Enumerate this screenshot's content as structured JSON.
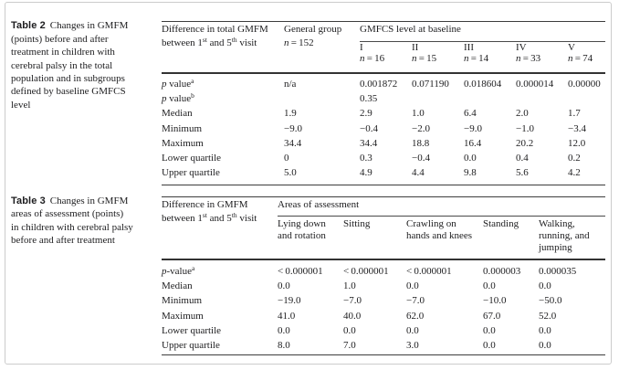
{
  "page": {
    "background": "#ffffff",
    "card_border": "#cccccc",
    "text_color": "#1d1d1f",
    "rule_color": "#3d3d3d"
  },
  "table2": {
    "caption_lines": [
      [
        {
          "t": "b",
          "x": "Table 2"
        },
        "Changes in GMFM"
      ],
      [
        "(points) before and after"
      ],
      [
        "treatment in children with"
      ],
      [
        "cerebral palsy in the total"
      ],
      [
        "population and in subgroups"
      ],
      [
        "defined by baseline GMFCS"
      ],
      [
        "level"
      ]
    ],
    "header": {
      "col1_lines": [
        [
          "Difference in total GMFM"
        ],
        [
          "between 1",
          {
            "t": "sup",
            "x": "st"
          },
          " and 5",
          {
            "t": "sup",
            "x": "th"
          },
          " visit"
        ]
      ],
      "col2_lines": [
        [
          "General group"
        ],
        [
          {
            "t": "i",
            "x": "n"
          },
          " = 152"
        ]
      ],
      "span_lines": [
        [
          "GMFCS level at baseline"
        ]
      ],
      "groups": [
        [
          [
            "I"
          ],
          [
            {
              "t": "i",
              "x": "n"
            },
            " = 16"
          ]
        ],
        [
          [
            "II"
          ],
          [
            {
              "t": "i",
              "x": "n"
            },
            " = 15"
          ]
        ],
        [
          [
            "III"
          ],
          [
            {
              "t": "i",
              "x": "n"
            },
            " = 14"
          ]
        ],
        [
          [
            "IV"
          ],
          [
            {
              "t": "i",
              "x": "n"
            },
            " = 33"
          ]
        ],
        [
          [
            "V"
          ],
          [
            {
              "t": "i",
              "x": "n"
            },
            " = 74"
          ]
        ]
      ]
    },
    "rows": [
      {
        "label": [
          {
            "t": "i",
            "x": "p"
          },
          " value",
          {
            "t": "sup",
            "x": "a"
          }
        ],
        "values": [
          "n/a",
          "0.001872",
          "0.071190",
          "0.018604",
          "0.000014",
          "0.00000"
        ]
      },
      {
        "label": [
          {
            "t": "i",
            "x": "p"
          },
          " value",
          {
            "t": "sup",
            "x": "b"
          }
        ],
        "values": [
          "",
          "0.35",
          "",
          "",
          "",
          ""
        ]
      },
      {
        "label": [
          "Median"
        ],
        "values": [
          "1.9",
          "2.9",
          "1.0",
          "6.4",
          "2.0",
          "1.7"
        ]
      },
      {
        "label": [
          "Minimum"
        ],
        "values": [
          "−9.0",
          "−0.4",
          "−2.0",
          "−9.0",
          "−1.0",
          "−3.4"
        ]
      },
      {
        "label": [
          "Maximum"
        ],
        "values": [
          "34.4",
          "34.4",
          "18.8",
          "16.4",
          "20.2",
          "12.0"
        ]
      },
      {
        "label": [
          "Lower quartile"
        ],
        "values": [
          "0",
          "0.3",
          "−0.4",
          "0.0",
          "0.4",
          "0.2"
        ]
      },
      {
        "label": [
          "Upper quartile"
        ],
        "values": [
          "5.0",
          "4.9",
          "4.4",
          "9.8",
          "5.6",
          "4.2"
        ]
      }
    ]
  },
  "table3": {
    "caption_lines": [
      [
        {
          "t": "b",
          "x": "Table 3"
        },
        "Changes in GMFM"
      ],
      [
        "areas of assessment (points)"
      ],
      [
        "in children with cerebral palsy"
      ],
      [
        "before and after treatment"
      ]
    ],
    "header": {
      "col1_lines": [
        [
          "Difference in GMFM"
        ],
        [
          "between 1",
          {
            "t": "sup",
            "x": "st"
          },
          " and 5",
          {
            "t": "sup",
            "x": "th"
          },
          " visit"
        ]
      ],
      "span_lines": [
        [
          "Areas of assessment"
        ]
      ],
      "groups": [
        [
          [
            "Lying down"
          ],
          [
            "and rotation"
          ]
        ],
        [
          [
            "Sitting"
          ]
        ],
        [
          [
            "Crawling on"
          ],
          [
            "hands and knees"
          ]
        ],
        [
          [
            "Standing"
          ]
        ],
        [
          [
            "Walking,"
          ],
          [
            "running, and"
          ],
          [
            "jumping"
          ]
        ]
      ]
    },
    "rows": [
      {
        "label": [
          {
            "t": "i",
            "x": "p"
          },
          "-value",
          {
            "t": "sup",
            "x": "a"
          }
        ],
        "values": [
          "< 0.000001",
          "< 0.000001",
          "< 0.000001",
          "0.000003",
          "0.000035"
        ]
      },
      {
        "label": [
          "Median"
        ],
        "values": [
          "0.0",
          "1.0",
          "0.0",
          "0.0",
          "0.0"
        ]
      },
      {
        "label": [
          "Minimum"
        ],
        "values": [
          "−19.0",
          "−7.0",
          "−7.0",
          "−10.0",
          "−50.0"
        ]
      },
      {
        "label": [
          "Maximum"
        ],
        "values": [
          "41.0",
          "40.0",
          "62.0",
          "67.0",
          "52.0"
        ]
      },
      {
        "label": [
          "Lower quartile"
        ],
        "values": [
          "0.0",
          "0.0",
          "0.0",
          "0.0",
          "0.0"
        ]
      },
      {
        "label": [
          "Upper quartile"
        ],
        "values": [
          "8.0",
          "7.0",
          "3.0",
          "0.0",
          "0.0"
        ]
      }
    ]
  }
}
